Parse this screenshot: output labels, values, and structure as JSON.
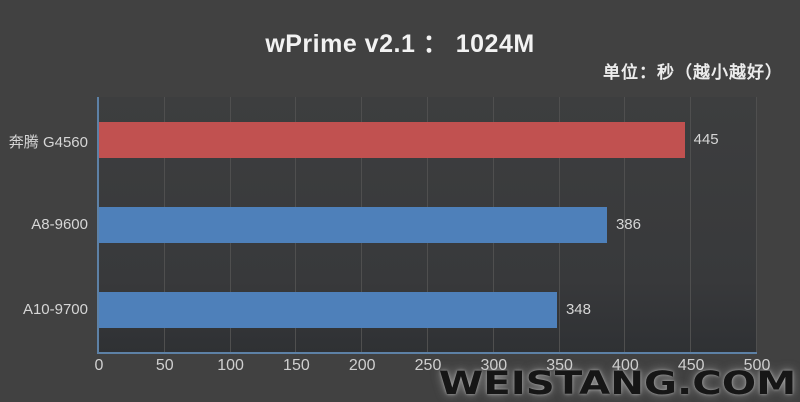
{
  "chart_data": {
    "type": "bar",
    "orientation": "horizontal",
    "title": "wPrime v2.1 ： 1024M",
    "subtitle": "单位：秒（越小越好）",
    "categories": [
      "奔腾 G4560",
      "A8-9600",
      "A10-9700"
    ],
    "values": [
      445,
      386,
      348
    ],
    "value_labels": [
      "445",
      "386",
      "348"
    ],
    "bar_colors": [
      "#c15150",
      "#4e80ba",
      "#4e80ba"
    ],
    "xlim": [
      0,
      500
    ],
    "x_ticks": [
      0,
      50,
      100,
      150,
      200,
      250,
      300,
      350,
      400,
      450,
      500
    ],
    "grid": "vertical-gridlines-every-50",
    "legend": "none",
    "background_color": "#414141",
    "axis_line_color": "#5d81a6",
    "gridline_color": "#4f4f4f",
    "title_color": "#f2f2f2",
    "label_color": "#d6d6d6"
  },
  "watermark": {
    "text": "WEISTANG.COM"
  }
}
